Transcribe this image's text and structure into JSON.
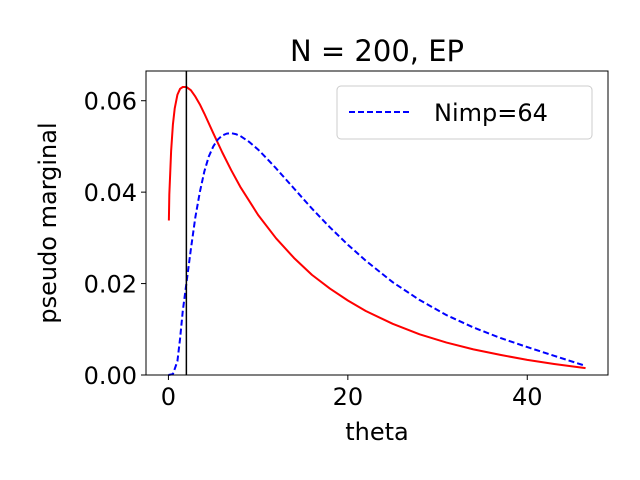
{
  "chart_data": {
    "type": "line",
    "title": "N = 200, EP",
    "xlabel": "theta",
    "ylabel": "pseudo marginal",
    "xlim": [
      -2.5,
      49
    ],
    "ylim": [
      0,
      0.0665
    ],
    "xticks": [
      0,
      20,
      40
    ],
    "xtick_labels": [
      "0",
      "20",
      "40"
    ],
    "yticks": [
      0,
      0.02,
      0.04,
      0.06
    ],
    "ytick_labels": [
      "0.00",
      "0.02",
      "0.04",
      "0.06"
    ],
    "grid": false,
    "legend_position": "top-right",
    "vline_x": 2.0,
    "series": [
      {
        "name": "",
        "color": "#ff0000",
        "style": "solid",
        "x": [
          0.05,
          0.1,
          0.2,
          0.3,
          0.5,
          0.7,
          1.0,
          1.3,
          1.6,
          2.0,
          2.5,
          3.0,
          3.5,
          4.0,
          5.0,
          6.0,
          7.0,
          8.0,
          10.0,
          12.0,
          14.0,
          16.0,
          18.0,
          20.0,
          22.0,
          25.0,
          28.0,
          31.0,
          34.0,
          37.0,
          40.0,
          43.0,
          46.5
        ],
        "y": [
          0.0338,
          0.0395,
          0.0442,
          0.049,
          0.0548,
          0.0583,
          0.0613,
          0.0626,
          0.063,
          0.063,
          0.0623,
          0.0609,
          0.0592,
          0.0572,
          0.0529,
          0.0487,
          0.0448,
          0.0412,
          0.035,
          0.0299,
          0.0256,
          0.0219,
          0.0189,
          0.0163,
          0.014,
          0.0112,
          0.0089,
          0.0071,
          0.0056,
          0.0044,
          0.0033,
          0.0024,
          0.0015
        ]
      },
      {
        "name": "Nimp=64",
        "color": "#0000ff",
        "style": "dashed",
        "x": [
          0.0,
          0.5,
          1.0,
          1.3,
          1.6,
          2.0,
          2.5,
          3.0,
          3.5,
          4.0,
          4.5,
          5.0,
          5.5,
          6.0,
          6.5,
          7.0,
          7.5,
          8.0,
          9.0,
          10.0,
          11.0,
          12.0,
          14.0,
          16.0,
          18.0,
          20.0,
          22.0,
          25.0,
          28.0,
          31.0,
          34.0,
          37.0,
          40.0,
          43.0,
          46.5
        ],
        "y": [
          0.0,
          0.0002,
          0.003,
          0.008,
          0.014,
          0.02,
          0.0275,
          0.0345,
          0.04,
          0.0445,
          0.0478,
          0.05,
          0.0515,
          0.0524,
          0.0528,
          0.0529,
          0.0527,
          0.0523,
          0.051,
          0.0493,
          0.0473,
          0.0452,
          0.0408,
          0.0364,
          0.0323,
          0.0285,
          0.025,
          0.0203,
          0.0164,
          0.0131,
          0.0104,
          0.0081,
          0.0061,
          0.0042,
          0.002
        ]
      }
    ]
  }
}
